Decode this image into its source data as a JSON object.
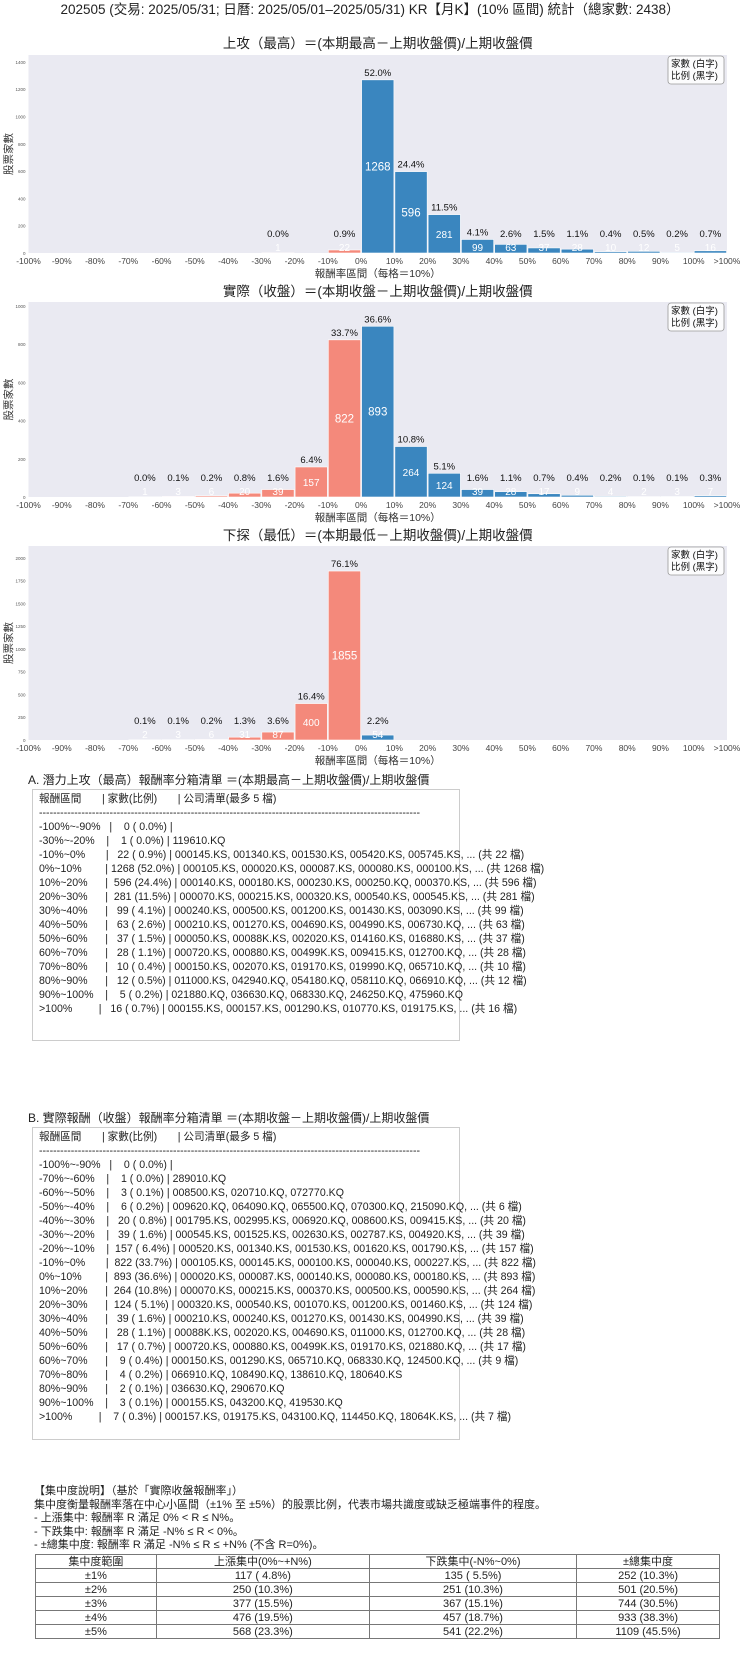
{
  "page_title": "202505 (交易: 2025/05/31; 日曆: 2025/05/01–2025/05/31) KR【月K】(10% 區間) 統計（總家數: 2438）",
  "colors": {
    "negative": "#f4897b",
    "positive": "#3a86bf",
    "plot_bg": "#eaeaf2"
  },
  "chart_data": [
    {
      "type": "bar",
      "title": "上攻（最高）＝(本期最高－上期收盤價)/上期收盤價",
      "xlabel": "報酬率區間（每格＝10%）",
      "ylabel": "股票家數",
      "legend": [
        "家數 (白字)",
        "比例 (黑字)"
      ],
      "legend_position": "top-right",
      "xtick_labels": [
        "-100%",
        "-90%",
        "-80%",
        "-70%",
        "-60%",
        "-50%",
        "-40%",
        "-30%",
        "-20%",
        "-10%",
        "0%",
        "10%",
        "20%",
        "30%",
        "40%",
        "50%",
        "60%",
        "70%",
        "80%",
        "90%",
        "100%",
        ">100%"
      ],
      "categories": [
        "-100%~-90%",
        "-90%~-80%",
        "-80%~-70%",
        "-70%~-60%",
        "-60%~-50%",
        "-50%~-40%",
        "-40%~-30%",
        "-30%~-20%",
        "-20%~-10%",
        "-10%~0%",
        "0%~10%",
        "10%~20%",
        "20%~30%",
        "30%~40%",
        "40%~50%",
        "50%~60%",
        "60%~70%",
        "70%~80%",
        "80%~90%",
        "90%~100%",
        ">100%"
      ],
      "values": [
        0,
        0,
        0,
        0,
        0,
        0,
        0,
        1,
        0,
        22,
        1268,
        596,
        281,
        99,
        63,
        37,
        28,
        10,
        12,
        5,
        16
      ],
      "percent_labels": [
        "",
        "",
        "",
        "",
        "",
        "",
        "",
        "0.0%",
        "",
        "0.9%",
        "52.0%",
        "24.4%",
        "11.5%",
        "4.1%",
        "2.6%",
        "1.5%",
        "1.1%",
        "0.4%",
        "0.5%",
        "0.2%",
        "0.7%"
      ],
      "ylim": [
        0,
        1450
      ],
      "yticks": [
        0,
        200,
        400,
        600,
        800,
        1000,
        1200,
        1400
      ],
      "grid": false
    },
    {
      "type": "bar",
      "title": "實際（收盤）＝(本期收盤－上期收盤價)/上期收盤價",
      "xlabel": "報酬率區間（每格＝10%）",
      "ylabel": "股票家數",
      "legend": [
        "家數 (白字)",
        "比例 (黑字)"
      ],
      "legend_position": "top-right",
      "xtick_labels": [
        "-100%",
        "-90%",
        "-80%",
        "-70%",
        "-60%",
        "-50%",
        "-40%",
        "-30%",
        "-20%",
        "-10%",
        "0%",
        "10%",
        "20%",
        "30%",
        "40%",
        "50%",
        "60%",
        "70%",
        "80%",
        "90%",
        "100%",
        ">100%"
      ],
      "categories": [
        "-100%~-90%",
        "-90%~-80%",
        "-80%~-70%",
        "-70%~-60%",
        "-60%~-50%",
        "-50%~-40%",
        "-40%~-30%",
        "-30%~-20%",
        "-20%~-10%",
        "-10%~0%",
        "0%~10%",
        "10%~20%",
        "20%~30%",
        "30%~40%",
        "40%~50%",
        "50%~60%",
        "60%~70%",
        "70%~80%",
        "80%~90%",
        "90%~100%",
        ">100%"
      ],
      "values": [
        0,
        0,
        0,
        1,
        3,
        6,
        20,
        39,
        157,
        822,
        893,
        264,
        124,
        39,
        28,
        17,
        9,
        4,
        2,
        3,
        7
      ],
      "percent_labels": [
        "",
        "",
        "",
        "0.0%",
        "0.1%",
        "0.2%",
        "0.8%",
        "1.6%",
        "6.4%",
        "33.7%",
        "36.6%",
        "10.8%",
        "5.1%",
        "1.6%",
        "1.1%",
        "0.7%",
        "0.4%",
        "0.2%",
        "0.1%",
        "0.1%",
        "0.3%"
      ],
      "ylim": [
        0,
        1020
      ],
      "yticks": [
        0,
        200,
        400,
        600,
        800,
        1000
      ],
      "grid": false
    },
    {
      "type": "bar",
      "title": "下探（最低）＝(本期最低－上期收盤價)/上期收盤價",
      "xlabel": "報酬率區間（每格＝10%）",
      "ylabel": "股票家數",
      "legend": [
        "家數 (白字)",
        "比例 (黑字)"
      ],
      "legend_position": "top-right",
      "xtick_labels": [
        "-100%",
        "-90%",
        "-80%",
        "-70%",
        "-60%",
        "-50%",
        "-40%",
        "-30%",
        "-20%",
        "-10%",
        "0%",
        "10%",
        "20%",
        "30%",
        "40%",
        "50%",
        "60%",
        "70%",
        "80%",
        "90%",
        "100%",
        ">100%"
      ],
      "categories": [
        "-100%~-90%",
        "-90%~-80%",
        "-80%~-70%",
        "-70%~-60%",
        "-60%~-50%",
        "-50%~-40%",
        "-40%~-30%",
        "-30%~-20%",
        "-20%~-10%",
        "-10%~0%",
        "0%~10%",
        "10%~20%",
        "20%~30%",
        "30%~40%",
        "40%~50%",
        "50%~60%",
        "60%~70%",
        "70%~80%",
        "80%~90%",
        "90%~100%",
        ">100%"
      ],
      "values": [
        0,
        0,
        0,
        2,
        3,
        6,
        31,
        87,
        400,
        1855,
        54,
        0,
        0,
        0,
        0,
        0,
        0,
        0,
        0,
        0,
        0
      ],
      "percent_labels": [
        "",
        "",
        "",
        "0.1%",
        "0.1%",
        "0.2%",
        "1.3%",
        "3.6%",
        "16.4%",
        "76.1%",
        "2.2%",
        "",
        "",
        "",
        "",
        "",
        "",
        "",
        "",
        "",
        ""
      ],
      "ylim": [
        0,
        2130
      ],
      "yticks": [
        0,
        250,
        500,
        750,
        1000,
        1250,
        1500,
        1750,
        2000
      ],
      "grid": false
    }
  ],
  "list_a": {
    "title": "A. 潛力上攻（最高）報酬率分箱清單 ＝(本期最高－上期收盤價)/上期收盤價",
    "header": "報酬區間       | 家數(比例)       | 公司清單(最多 5 檔)",
    "divider": "------------------------------------------------------------------------------------------------------------",
    "rows": [
      "-100%~-90%   |    0 ( 0.0%) |",
      "-30%~-20%    |    1 ( 0.0%) | 119610.KQ",
      "-10%~0%       |   22 ( 0.9%) | 000145.KS, 001340.KS, 001530.KS, 005420.KS, 005745.KS, ... (共 22 檔)",
      "0%~10%        | 1268 (52.0%) | 000105.KS, 000020.KS, 000087.KS, 000080.KS, 000100.KS, ... (共 1268 檔)",
      "10%~20%      |  596 (24.4%) | 000140.KS, 000180.KS, 000230.KS, 000250.KQ, 000370.KS, ... (共 596 檔)",
      "20%~30%      |  281 (11.5%) | 000070.KS, 000215.KS, 000320.KS, 000540.KS, 000545.KS, ... (共 281 檔)",
      "30%~40%      |   99 ( 4.1%) | 000240.KS, 000500.KS, 001200.KS, 001430.KS, 003090.KS, ... (共 99 檔)",
      "40%~50%      |   63 ( 2.6%) | 000210.KS, 001270.KS, 004690.KS, 004990.KS, 006730.KQ, ... (共 63 檔)",
      "50%~60%      |   37 ( 1.5%) | 000050.KS, 00088K.KS, 002020.KS, 014160.KS, 016880.KS, ... (共 37 檔)",
      "60%~70%      |   28 ( 1.1%) | 000720.KS, 000880.KS, 00499K.KS, 009415.KS, 012700.KQ, ... (共 28 檔)",
      "70%~80%      |   10 ( 0.4%) | 000150.KS, 002070.KS, 019170.KS, 019990.KQ, 065710.KQ, ... (共 10 檔)",
      "80%~90%      |   12 ( 0.5%) | 011000.KS, 042940.KQ, 054180.KQ, 058110.KQ, 066910.KQ, ... (共 12 檔)",
      "90%~100%    |    5 ( 0.2%) | 021880.KQ, 036630.KQ, 068330.KQ, 246250.KQ, 475960.KQ",
      ">100%         |   16 ( 0.7%) | 000155.KS, 000157.KS, 001290.KS, 010770.KS, 019175.KS, ... (共 16 檔)"
    ]
  },
  "list_b": {
    "title": "B. 實際報酬（收盤）報酬率分箱清單 ＝(本期收盤－上期收盤價)/上期收盤價",
    "header": "報酬區間       | 家數(比例)       | 公司清單(最多 5 檔)",
    "divider": "------------------------------------------------------------------------------------------------------------",
    "rows": [
      "-100%~-90%   |    0 ( 0.0%) |",
      "-70%~-60%    |    1 ( 0.0%) | 289010.KQ",
      "-60%~-50%    |    3 ( 0.1%) | 008500.KS, 020710.KQ, 072770.KQ",
      "-50%~-40%    |    6 ( 0.2%) | 009620.KQ, 064090.KQ, 065500.KQ, 070300.KQ, 215090.KQ, ... (共 6 檔)",
      "-40%~-30%    |   20 ( 0.8%) | 001795.KS, 002995.KS, 006920.KQ, 008600.KS, 009415.KS, ... (共 20 檔)",
      "-30%~-20%    |   39 ( 1.6%) | 000545.KS, 001525.KS, 002630.KS, 002787.KS, 004920.KS, ... (共 39 檔)",
      "-20%~-10%    |  157 ( 6.4%) | 000520.KS, 001340.KS, 001530.KS, 001620.KS, 001790.KS, ... (共 157 檔)",
      "-10%~0%       |  822 (33.7%) | 000105.KS, 000145.KS, 000100.KS, 000040.KS, 000227.KS, ... (共 822 檔)",
      "0%~10%        |  893 (36.6%) | 000020.KS, 000087.KS, 000140.KS, 000080.KS, 000180.KS, ... (共 893 檔)",
      "10%~20%      |  264 (10.8%) | 000070.KS, 000215.KS, 000370.KS, 000500.KS, 000590.KS, ... (共 264 檔)",
      "20%~30%      |  124 ( 5.1%) | 000320.KS, 000540.KS, 001070.KS, 001200.KS, 001460.KS, ... (共 124 檔)",
      "30%~40%      |   39 ( 1.6%) | 000210.KS, 000240.KS, 001270.KS, 001430.KS, 004990.KS, ... (共 39 檔)",
      "40%~50%      |   28 ( 1.1%) | 00088K.KS, 002020.KS, 004690.KS, 011000.KS, 012700.KQ, ... (共 28 檔)",
      "50%~60%      |   17 ( 0.7%) | 000720.KS, 000880.KS, 00499K.KS, 019170.KS, 021880.KQ, ... (共 17 檔)",
      "60%~70%      |    9 ( 0.4%) | 000150.KS, 001290.KS, 065710.KQ, 068330.KQ, 124500.KQ, ... (共 9 檔)",
      "70%~80%      |    4 ( 0.2%) | 066910.KQ, 108490.KQ, 138610.KQ, 180640.KS",
      "80%~90%      |    2 ( 0.1%) | 036630.KQ, 290670.KQ",
      "90%~100%    |    3 ( 0.1%) | 000155.KS, 043200.KQ, 419530.KQ",
      ">100%         |    7 ( 0.3%) | 000157.KS, 019175.KS, 043100.KQ, 114450.KQ, 18064K.KS, ... (共 7 檔)"
    ]
  },
  "concentration": {
    "lines": [
      "【集中度說明】（基於「實際收盤報酬率」）",
      "集中度衡量報酬率落在中心小區間（±1% 至 ±5%）的股票比例，代表市場共識度或缺乏極端事件的程度。",
      " - 上漲集中: 報酬率 R 滿足 0% < R ≤ N%。",
      " - 下跌集中: 報酬率 R 滿足 -N% ≤ R < 0%。",
      " - ±總集中度: 報酬率 R 滿足 -N% ≤ R ≤ +N% (不含 R=0%)。"
    ],
    "headers": [
      "集中度範圍",
      "上漲集中(0%~+N%)",
      "下跌集中(-N%~0%)",
      "±總集中度"
    ],
    "rows": [
      [
        "±1%",
        "117 ( 4.8%)",
        "135 ( 5.5%)",
        "252 (10.3%)"
      ],
      [
        "±2%",
        "250 (10.3%)",
        "251 (10.3%)",
        "501 (20.5%)"
      ],
      [
        "±3%",
        "377 (15.5%)",
        "367 (15.1%)",
        "744 (30.5%)"
      ],
      [
        "±4%",
        "476 (19.5%)",
        "457 (18.7%)",
        "933 (38.3%)"
      ],
      [
        "±5%",
        "568 (23.3%)",
        "541 (22.2%)",
        "1109 (45.5%)"
      ]
    ]
  }
}
